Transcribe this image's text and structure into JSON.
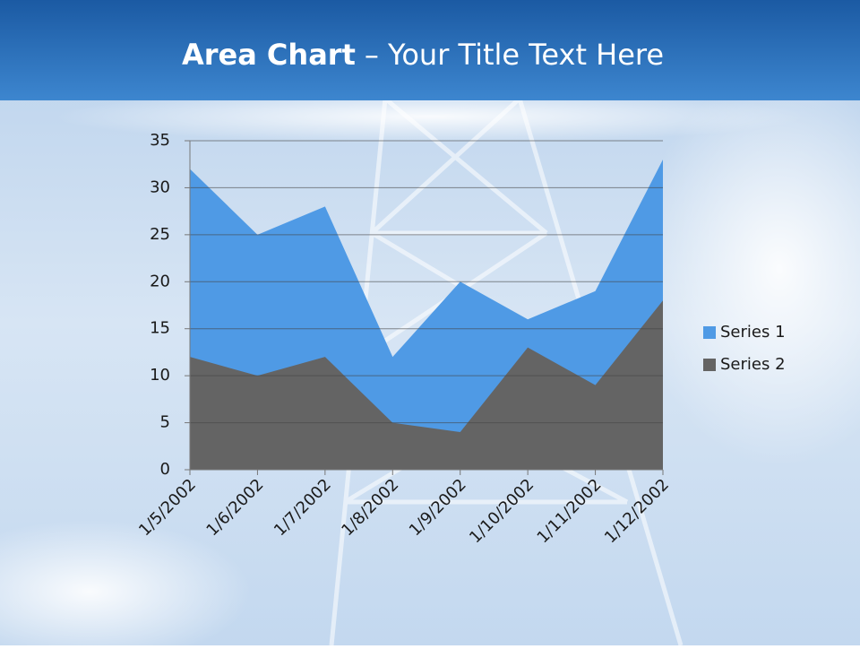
{
  "chart_data": {
    "type": "area",
    "title": [
      "Area Chart",
      "– Your Title Text Here"
    ],
    "categories": [
      "1/5/2002",
      "1/6/2002",
      "1/7/2002",
      "1/8/2002",
      "1/9/2002",
      "1/10/2002",
      "1/11/2002",
      "1/12/2002"
    ],
    "series": [
      {
        "name": "Series 1",
        "color": "#4f9ae5",
        "values": [
          32,
          25,
          28,
          12,
          20,
          16,
          19,
          33
        ]
      },
      {
        "name": "Series 2",
        "color": "#646464",
        "values": [
          12,
          10,
          12,
          5,
          4,
          13,
          9,
          18
        ]
      }
    ],
    "ylim": [
      0,
      35
    ],
    "yticks": [
      0,
      5,
      10,
      15,
      20,
      25,
      30,
      35
    ],
    "grid": true,
    "legend": "right"
  }
}
